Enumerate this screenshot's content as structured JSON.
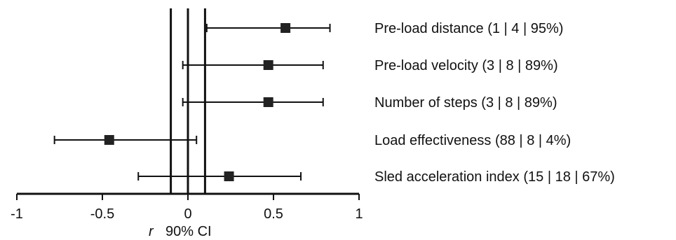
{
  "chart_data": {
    "type": "forest",
    "xlim": [
      -1,
      1
    ],
    "x_ticks": [
      -1,
      -0.5,
      0,
      0.5,
      1
    ],
    "x_tick_labels": [
      "-1",
      "-0.5",
      "0",
      "0.5",
      "1"
    ],
    "xlabel_symbol": "r",
    "xlabel_text": "90% CI",
    "reference_lines": [
      -0.1,
      0,
      0.1
    ],
    "grid": false,
    "rows": [
      {
        "label": "Pre-load distance (1 | 4 | 95%)",
        "estimate": 0.57,
        "lower": 0.11,
        "upper": 0.83
      },
      {
        "label": "Pre-load velocity (3 | 8 | 89%)",
        "estimate": 0.47,
        "lower": -0.03,
        "upper": 0.79
      },
      {
        "label": "Number of steps (3 | 8 | 89%)",
        "estimate": 0.47,
        "lower": -0.03,
        "upper": 0.79
      },
      {
        "label": "Load effectiveness (88 | 8 | 4%)",
        "estimate": -0.46,
        "lower": -0.78,
        "upper": 0.05
      },
      {
        "label": "Sled acceleration index (15 | 18 | 67%)",
        "estimate": 0.24,
        "lower": -0.29,
        "upper": 0.66
      }
    ]
  }
}
